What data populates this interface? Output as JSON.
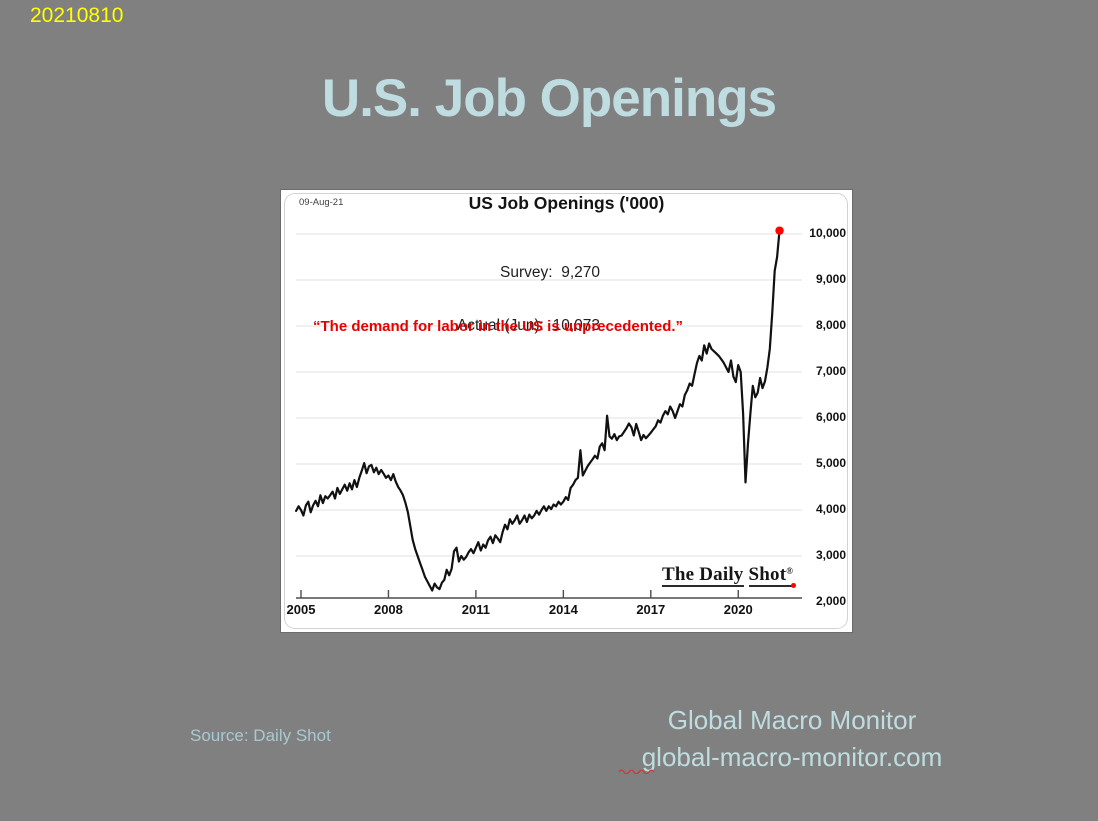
{
  "slide": {
    "date_code": "20210810",
    "title": "U.S. Job Openings",
    "source_note": "Source: Daily Shot",
    "footer_brand": "Global Macro Monitor",
    "footer_url": "global-macro-monitor.com",
    "colors": {
      "background": "#808080",
      "accent_text": "#bfdde1",
      "date_text": "#ffff00",
      "quote_red": "#e80000",
      "source_text": "#a8c9d1",
      "line": "#111111",
      "highlight_dot": "#ff0000"
    }
  },
  "chart": {
    "stamp": "09-Aug-21",
    "title": "US Job Openings ('000)",
    "annotation_line1": "Survey:  9,270",
    "annotation_line2": "Actual (Jun):  10,073",
    "quote": "“The demand for labor in the US is unprecedented.”",
    "watermark": {
      "part1": "The Daily",
      "part2": "Shot",
      "reg": "®"
    }
  },
  "chart_data": {
    "type": "line",
    "title": "US Job Openings ('000)",
    "unit": "thousands",
    "frequency": "monthly",
    "start_year_decimal": 2004.8333,
    "survey_value": 9270,
    "actual_jun_value": 10073,
    "ylim": [
      2000,
      10200
    ],
    "xlim": [
      2004.8,
      2022.2
    ],
    "grid": true,
    "x_ticks": [
      {
        "year": 2005,
        "label": "2005"
      },
      {
        "year": 2008,
        "label": "2008"
      },
      {
        "year": 2011,
        "label": "2011"
      },
      {
        "year": 2014,
        "label": "2014"
      },
      {
        "year": 2017,
        "label": "2017"
      },
      {
        "year": 2020,
        "label": "2020"
      }
    ],
    "y_ticks": [
      {
        "value": 2000,
        "label": "2,000"
      },
      {
        "value": 3000,
        "label": "3,000"
      },
      {
        "value": 4000,
        "label": "4,000"
      },
      {
        "value": 5000,
        "label": "5,000"
      },
      {
        "value": 6000,
        "label": "6,000"
      },
      {
        "value": 7000,
        "label": "7,000"
      },
      {
        "value": 8000,
        "label": "8,000"
      },
      {
        "value": 9000,
        "label": "9,000"
      },
      {
        "value": 10000,
        "label": "10,000"
      }
    ],
    "values": [
      3980,
      4080,
      4000,
      3880,
      4100,
      4180,
      3950,
      4100,
      4200,
      4080,
      4320,
      4150,
      4300,
      4250,
      4320,
      4400,
      4250,
      4480,
      4350,
      4450,
      4550,
      4420,
      4580,
      4450,
      4650,
      4500,
      4700,
      4850,
      5020,
      4800,
      4950,
      4980,
      4820,
      4920,
      4780,
      4870,
      4790,
      4700,
      4750,
      4650,
      4780,
      4620,
      4500,
      4420,
      4320,
      4150,
      3950,
      3650,
      3350,
      3150,
      3000,
      2850,
      2700,
      2550,
      2450,
      2350,
      2250,
      2400,
      2320,
      2280,
      2420,
      2480,
      2700,
      2580,
      2720,
      3100,
      3180,
      2880,
      3000,
      2920,
      2980,
      3080,
      3150,
      3060,
      3180,
      3300,
      3120,
      3250,
      3180,
      3340,
      3420,
      3280,
      3450,
      3380,
      3300,
      3520,
      3680,
      3580,
      3800,
      3700,
      3780,
      3880,
      3700,
      3780,
      3880,
      3740,
      3900,
      3820,
      3880,
      3980,
      3900,
      4000,
      4080,
      3980,
      4080,
      4020,
      4120,
      4080,
      4180,
      4120,
      4180,
      4280,
      4220,
      4480,
      4550,
      4650,
      4700,
      5300,
      4750,
      4850,
      4950,
      5030,
      5100,
      5180,
      5120,
      5380,
      5450,
      5300,
      6050,
      5600,
      5550,
      5650,
      5520,
      5600,
      5620,
      5700,
      5780,
      5880,
      5800,
      5620,
      5870,
      5700,
      5520,
      5630,
      5560,
      5620,
      5680,
      5750,
      5820,
      5950,
      5900,
      6050,
      6150,
      6080,
      6250,
      6150,
      6000,
      6150,
      6300,
      6250,
      6500,
      6600,
      6750,
      6700,
      6950,
      7200,
      7350,
      7250,
      7580,
      7400,
      7620,
      7500,
      7450,
      7400,
      7350,
      7280,
      7200,
      7100,
      7000,
      7250,
      6900,
      6780,
      7150,
      7000,
      6100,
      4600,
      5450,
      6100,
      6700,
      6450,
      6550,
      6870,
      6650,
      6800,
      7100,
      7500,
      8300,
      9200,
      9500,
      10073
    ],
    "highlight_last_point": true,
    "legend": "none"
  }
}
